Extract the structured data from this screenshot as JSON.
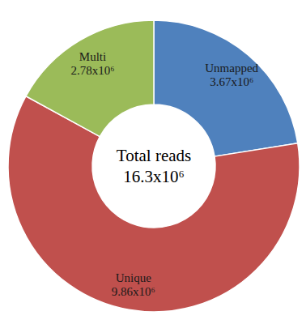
{
  "chart_data": {
    "type": "donut",
    "title": "Total reads",
    "subtitle": "16.3x10⁶",
    "categories": [
      "Unmapped",
      "Unique",
      "Multi"
    ],
    "values": [
      3670000,
      9860000,
      2780000
    ],
    "value_labels": [
      "3.67x10⁶",
      "9.86x10⁶",
      "2.78x10⁶"
    ],
    "colors": [
      "#4f81bd",
      "#c0504d",
      "#9bbb59"
    ],
    "data_labels": true
  }
}
